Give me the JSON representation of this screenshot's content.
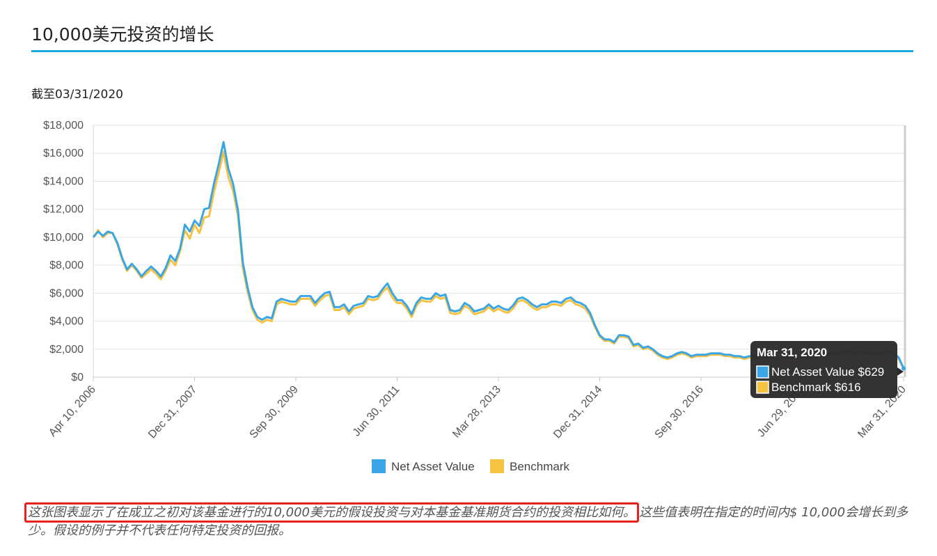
{
  "header": {
    "title": "10,000美元投资的增长",
    "as_of": "截至03/31/2020"
  },
  "chart_data": {
    "type": "line",
    "y_ticks": [
      "$0",
      "$2,000",
      "$4,000",
      "$6,000",
      "$8,000",
      "$10,000",
      "$12,000",
      "$14,000",
      "$16,000",
      "$18,000"
    ],
    "ylim": [
      0,
      18000
    ],
    "x_labels": [
      "Apr 10, 2006",
      "Dec 31, 2007",
      "Sep 30, 2009",
      "Jun 30, 2011",
      "Mar 28, 2013",
      "Dec 31, 2014",
      "Sep 30, 2016",
      "Jun 29, 2018",
      "Mar 31, 2020"
    ],
    "x_label_positions": [
      0,
      21,
      42,
      63,
      84,
      105,
      126,
      147,
      168
    ],
    "grid": "horizontal",
    "legend_position": "bottom",
    "series": [
      {
        "name": "Net Asset Value",
        "color": "#3ba6e6",
        "values": [
          10000,
          10400,
          10100,
          10400,
          10300,
          9600,
          8500,
          7700,
          8100,
          7700,
          7200,
          7600,
          7900,
          7600,
          7200,
          7800,
          8700,
          8300,
          9200,
          10900,
          10400,
          11200,
          10800,
          12000,
          12100,
          13800,
          15200,
          16800,
          14900,
          13800,
          11900,
          8200,
          6400,
          5000,
          4300,
          4100,
          4300,
          4200,
          5400,
          5600,
          5500,
          5400,
          5400,
          5800,
          5800,
          5800,
          5300,
          5700,
          6000,
          6100,
          5000,
          5000,
          5200,
          4700,
          5100,
          5200,
          5300,
          5800,
          5700,
          5800,
          6300,
          6700,
          6000,
          5500,
          5500,
          5100,
          4500,
          5300,
          5700,
          5600,
          5600,
          6000,
          5800,
          5900,
          4800,
          4700,
          4800,
          5300,
          5100,
          4700,
          4800,
          4900,
          5200,
          4900,
          5100,
          4900,
          4800,
          5100,
          5600,
          5700,
          5500,
          5200,
          5000,
          5200,
          5200,
          5400,
          5400,
          5300,
          5600,
          5700,
          5400,
          5300,
          5100,
          4600,
          3700,
          3000,
          2700,
          2700,
          2500,
          3000,
          3000,
          2900,
          2300,
          2400,
          2100,
          2200,
          2000,
          1700,
          1500,
          1400,
          1500,
          1700,
          1800,
          1700,
          1500,
          1600,
          1600,
          1600,
          1700,
          1700,
          1700,
          1600,
          1600,
          1500,
          1500,
          1400,
          1500,
          1500,
          1500,
          1400,
          1400,
          1400,
          1300,
          1400,
          1500,
          1400,
          1400,
          1400,
          1400,
          1500,
          1500,
          1600,
          1600,
          1700,
          1700,
          1800,
          1800,
          1900,
          1700,
          1800,
          1800,
          1700,
          1700,
          1700,
          1700,
          1900,
          1700,
          1400,
          629
        ]
      },
      {
        "name": "Benchmark",
        "color": "#f5c242",
        "values": [
          10000,
          10500,
          10000,
          10300,
          10300,
          9500,
          8400,
          7600,
          8000,
          7600,
          7100,
          7400,
          7700,
          7400,
          7000,
          7600,
          8400,
          8000,
          9000,
          10500,
          9900,
          10900,
          10300,
          11400,
          11500,
          13200,
          14600,
          16100,
          14300,
          13300,
          11500,
          7800,
          6100,
          4800,
          4100,
          3900,
          4100,
          4000,
          5200,
          5400,
          5300,
          5200,
          5200,
          5600,
          5600,
          5600,
          5100,
          5500,
          5800,
          5900,
          4800,
          4800,
          5000,
          4500,
          4900,
          5000,
          5100,
          5600,
          5500,
          5600,
          6100,
          6400,
          5700,
          5300,
          5300,
          4900,
          4300,
          5100,
          5500,
          5400,
          5400,
          5800,
          5600,
          5700,
          4600,
          4500,
          4600,
          5100,
          4900,
          4500,
          4600,
          4700,
          5000,
          4700,
          4900,
          4700,
          4600,
          4900,
          5400,
          5500,
          5300,
          5000,
          4800,
          5000,
          5000,
          5200,
          5200,
          5100,
          5400,
          5500,
          5200,
          5100,
          4900,
          4400,
          3600,
          2900,
          2600,
          2600,
          2400,
          2900,
          2900,
          2800,
          2200,
          2300,
          2000,
          2100,
          1900,
          1600,
          1400,
          1300,
          1400,
          1600,
          1700,
          1600,
          1400,
          1500,
          1500,
          1500,
          1600,
          1600,
          1600,
          1500,
          1500,
          1400,
          1400,
          1300,
          1400,
          1400,
          1400,
          1300,
          1300,
          1300,
          1200,
          1300,
          1400,
          1300,
          1300,
          1300,
          1300,
          1400,
          1400,
          1500,
          1500,
          1600,
          1600,
          1700,
          1700,
          1800,
          1600,
          1700,
          1700,
          1600,
          1600,
          1600,
          1600,
          1800,
          1600,
          1300,
          616
        ]
      }
    ],
    "tooltip": {
      "date": "Mar 31, 2020",
      "rows": [
        {
          "label": "Net Asset Value $629",
          "color": "#3ba6e6"
        },
        {
          "label": "Benchmark $616",
          "color": "#f5c242"
        }
      ]
    }
  },
  "footnote": {
    "highlighted": "这张图表显示了在成立之初对该基金进行的10,000美元的假设投资与对本基金基准期货合约的投资相比如何。",
    "rest": "这些值表明在指定的时间内$ 10,000会增长到多少。假设的例子并不代表任何特定投资的回报。"
  }
}
